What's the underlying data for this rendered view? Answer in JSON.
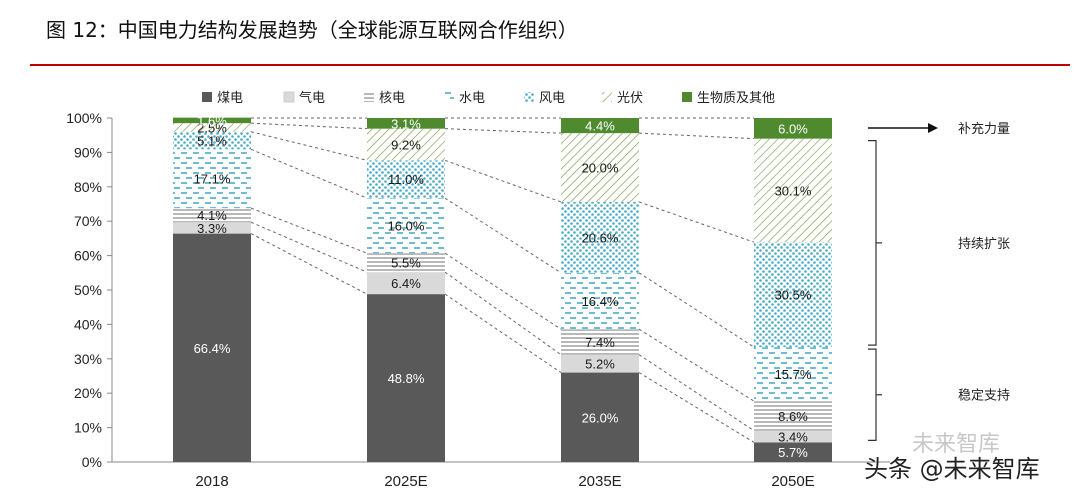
{
  "header": {
    "title": "图 12：中国电力结构发展趋势（全球能源互联网合作组织）"
  },
  "colors": {
    "coal": "#595959",
    "gas": "#d9d9d9",
    "nuclear": "#a6a6a6",
    "hydro": "#4bacc6",
    "wind": "#4bacc6",
    "solar": "#77933c",
    "bio": "#4f8a2f",
    "rule": "#c00000"
  },
  "chart_data": {
    "type": "bar",
    "stacked": true,
    "categories": [
      "2018",
      "2025E",
      "2035E",
      "2050E"
    ],
    "ylim": [
      0,
      100
    ],
    "yticks": [
      "0%",
      "10%",
      "20%",
      "30%",
      "40%",
      "50%",
      "60%",
      "70%",
      "80%",
      "90%",
      "100%"
    ],
    "series": [
      {
        "key": "coal",
        "name": "煤电",
        "values": [
          66.4,
          48.8,
          26.0,
          5.7
        ],
        "labels": [
          "66.4%",
          "48.8%",
          "26.0%",
          "5.7%"
        ]
      },
      {
        "key": "gas",
        "name": "气电",
        "values": [
          3.3,
          6.4,
          5.2,
          3.4
        ],
        "labels": [
          "3.3%",
          "6.4%",
          "5.2%",
          "3.4%"
        ]
      },
      {
        "key": "nuclear",
        "name": "核电",
        "values": [
          4.1,
          5.5,
          7.4,
          8.6
        ],
        "labels": [
          "4.1%",
          "5.5%",
          "7.4%",
          "8.6%"
        ]
      },
      {
        "key": "hydro",
        "name": "水电",
        "values": [
          17.1,
          16.0,
          16.4,
          15.7
        ],
        "labels": [
          "17.1%",
          "16.0%",
          "16.4%",
          "15.7%"
        ]
      },
      {
        "key": "wind",
        "name": "风电",
        "values": [
          5.1,
          11.0,
          20.6,
          30.5
        ],
        "labels": [
          "5.1%",
          "11.0%",
          "20.6%",
          "30.5%"
        ]
      },
      {
        "key": "solar",
        "name": "光伏",
        "values": [
          2.5,
          9.2,
          20.0,
          30.1
        ],
        "labels": [
          "2.5%",
          "9.2%",
          "20.0%",
          "30.1%"
        ]
      },
      {
        "key": "bio",
        "name": "生物质及其他",
        "values": [
          1.6,
          3.1,
          4.4,
          6.0
        ],
        "labels": [
          "1.6%",
          "3.1%",
          "4.4%",
          "6.0%"
        ]
      }
    ],
    "annotations": [
      {
        "text": "补充力量",
        "range": [
          94,
          100
        ],
        "style": "arrow"
      },
      {
        "text": "持续扩张",
        "range": [
          33.4,
          94
        ],
        "style": "bracket"
      },
      {
        "text": "稳定支持",
        "range": [
          5.7,
          33.4
        ],
        "style": "bracket"
      }
    ]
  },
  "watermark": {
    "text": "头条 @未来智库",
    "ghost_text": "未来智库"
  }
}
